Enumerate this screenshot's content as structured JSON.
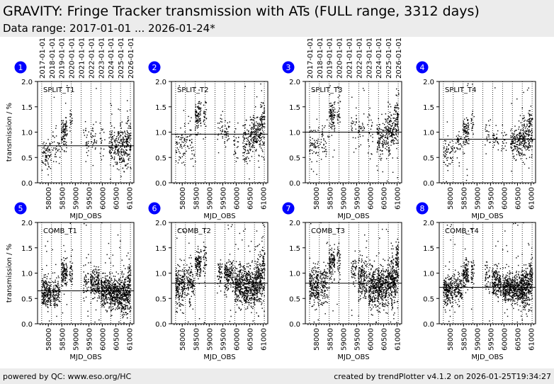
{
  "header": {
    "title": "GRAVITY: Fringe Tracker transmission with ATs (FULL range, 3312 days)",
    "subtitle": "Data range: 2017-01-01 ... 2026-01-24*"
  },
  "footer": {
    "left": "powered by QC: www.eso.org/HC",
    "right": "created by trendPlotter v4.1.2 on 2026-01-25T19:34:27"
  },
  "colors": {
    "badge": "#0000ff",
    "points": "#000000"
  },
  "year_labels": [
    "2017-01-01",
    "2018-01-01",
    "2019-01-01",
    "2020-01-01",
    "2021-01-01",
    "2022-01-01",
    "2023-01-01",
    "2024-01-01",
    "2025-01-01",
    "2026-01-01"
  ],
  "year_mjd": [
    57754,
    58119,
    58484,
    58849,
    59215,
    59580,
    59945,
    60310,
    60676,
    61041
  ],
  "chart_data": [
    {
      "type": "scatter",
      "badge": "1",
      "title": "SPLIT_T1",
      "xlabel": "MJD_OBS",
      "ylabel": "transmission / %",
      "xlim": [
        57600,
        61170
      ],
      "ylim": [
        0,
        2
      ],
      "xticks": [
        "58000",
        "58500",
        "59000",
        "59500",
        "60000",
        "60500",
        "61000"
      ],
      "yticks": [
        "0.0",
        "0.5",
        "1.0",
        "1.5",
        "2.0"
      ],
      "median": 0.73,
      "show_dates": true,
      "groups": [
        [
          57760,
          58100,
          0.55,
          0.15,
          120
        ],
        [
          58150,
          58450,
          0.7,
          0.15,
          60
        ],
        [
          58480,
          58700,
          1.0,
          0.15,
          160
        ],
        [
          58780,
          58900,
          1.15,
          0.15,
          30
        ],
        [
          59300,
          59500,
          0.9,
          0.15,
          40
        ],
        [
          59560,
          59800,
          0.85,
          0.15,
          50
        ],
        [
          59900,
          60100,
          0.85,
          0.15,
          30
        ],
        [
          60250,
          60550,
          0.7,
          0.2,
          160
        ],
        [
          60550,
          60900,
          0.7,
          0.2,
          250
        ],
        [
          60900,
          61060,
          0.8,
          0.25,
          150
        ]
      ]
    },
    {
      "type": "scatter",
      "badge": "2",
      "title": "SPLIT_T2",
      "xlabel": "MJD_OBS",
      "ylabel": "",
      "xlim": [
        57600,
        61170
      ],
      "ylim": [
        0,
        2
      ],
      "xticks": [
        "58000",
        "58500",
        "59000",
        "59500",
        "60000",
        "60500",
        "61000"
      ],
      "yticks": [
        "0.0",
        "0.5",
        "1.0",
        "1.5",
        "2.0"
      ],
      "median": 0.96,
      "show_dates": false,
      "groups": [
        [
          57760,
          58100,
          0.75,
          0.2,
          100
        ],
        [
          58150,
          58450,
          0.85,
          0.2,
          60
        ],
        [
          58480,
          58700,
          1.25,
          0.2,
          160
        ],
        [
          58780,
          58900,
          1.3,
          0.2,
          40
        ],
        [
          59300,
          59500,
          1.05,
          0.15,
          40
        ],
        [
          59560,
          59800,
          0.95,
          0.15,
          50
        ],
        [
          59900,
          60100,
          0.75,
          0.2,
          40
        ],
        [
          60250,
          60550,
          0.8,
          0.2,
          160
        ],
        [
          60550,
          60900,
          0.95,
          0.2,
          250
        ],
        [
          60900,
          61060,
          1.2,
          0.3,
          150
        ]
      ]
    },
    {
      "type": "scatter",
      "badge": "3",
      "title": "SPLIT_T3",
      "xlabel": "MJD_OBS",
      "ylabel": "",
      "xlim": [
        57600,
        61170
      ],
      "ylim": [
        0,
        2
      ],
      "xticks": [
        "58000",
        "58500",
        "59000",
        "59500",
        "60000",
        "60500",
        "61000"
      ],
      "yticks": [
        "0.0",
        "0.5",
        "1.0",
        "1.5",
        "2.0"
      ],
      "median": 1.0,
      "show_dates": true,
      "groups": [
        [
          57760,
          58100,
          0.7,
          0.2,
          100
        ],
        [
          58150,
          58450,
          0.8,
          0.2,
          60
        ],
        [
          58480,
          58700,
          1.3,
          0.15,
          160
        ],
        [
          58780,
          58900,
          1.35,
          0.2,
          40
        ],
        [
          59300,
          59500,
          1.1,
          0.15,
          40
        ],
        [
          59560,
          59800,
          1.05,
          0.15,
          50
        ],
        [
          59900,
          60100,
          0.95,
          0.2,
          40
        ],
        [
          60250,
          60550,
          0.85,
          0.2,
          160
        ],
        [
          60550,
          60900,
          1.0,
          0.2,
          250
        ],
        [
          60900,
          61060,
          1.3,
          0.3,
          150
        ]
      ]
    },
    {
      "type": "scatter",
      "badge": "4",
      "title": "SPLIT_T4",
      "xlabel": "MJD_OBS",
      "ylabel": "",
      "xlim": [
        57600,
        61170
      ],
      "ylim": [
        0,
        2
      ],
      "xticks": [
        "58000",
        "58500",
        "59000",
        "59500",
        "60000",
        "60500",
        "61000"
      ],
      "yticks": [
        "0.0",
        "0.5",
        "1.0",
        "1.5",
        "2.0"
      ],
      "median": 0.86,
      "show_dates": false,
      "groups": [
        [
          57760,
          58100,
          0.6,
          0.15,
          100
        ],
        [
          58150,
          58450,
          0.75,
          0.15,
          60
        ],
        [
          58480,
          58700,
          1.0,
          0.15,
          160
        ],
        [
          58780,
          58900,
          1.1,
          0.15,
          30
        ],
        [
          59300,
          59500,
          0.95,
          0.15,
          40
        ],
        [
          59560,
          59800,
          0.85,
          0.1,
          50
        ],
        [
          59900,
          60100,
          0.85,
          0.1,
          30
        ],
        [
          60250,
          60550,
          0.8,
          0.15,
          160
        ],
        [
          60550,
          60900,
          0.85,
          0.2,
          250
        ],
        [
          60900,
          61060,
          1.0,
          0.25,
          150
        ]
      ]
    },
    {
      "type": "scatter",
      "badge": "5",
      "title": "COMB_T1",
      "xlabel": "MJD_OBS",
      "ylabel": "transmission / %",
      "xlim": [
        57600,
        61170
      ],
      "ylim": [
        0,
        2
      ],
      "xticks": [
        "58000",
        "58500",
        "59000",
        "59500",
        "60000",
        "60500",
        "61000"
      ],
      "yticks": [
        "0.0",
        "0.5",
        "1.0",
        "1.5",
        "2.0"
      ],
      "median": 0.65,
      "show_dates": false,
      "groups": [
        [
          57760,
          58100,
          0.6,
          0.15,
          350
        ],
        [
          58150,
          58450,
          0.6,
          0.15,
          200
        ],
        [
          58480,
          58700,
          1.0,
          0.15,
          200
        ],
        [
          58780,
          58900,
          1.05,
          0.15,
          60
        ],
        [
          59300,
          59500,
          0.85,
          0.15,
          80
        ],
        [
          59560,
          59900,
          0.8,
          0.15,
          300
        ],
        [
          59950,
          60300,
          0.65,
          0.15,
          400
        ],
        [
          60300,
          60700,
          0.6,
          0.15,
          500
        ],
        [
          60700,
          60950,
          0.55,
          0.2,
          350
        ],
        [
          60950,
          61060,
          0.75,
          0.25,
          150
        ]
      ]
    },
    {
      "type": "scatter",
      "badge": "6",
      "title": "COMB_T2",
      "xlabel": "MJD_OBS",
      "ylabel": "",
      "xlim": [
        57600,
        61170
      ],
      "ylim": [
        0,
        2
      ],
      "xticks": [
        "58000",
        "58500",
        "59000",
        "59500",
        "60000",
        "60500",
        "61000"
      ],
      "yticks": [
        "0.0",
        "0.5",
        "1.0",
        "1.5",
        "2.0"
      ],
      "median": 0.8,
      "show_dates": false,
      "groups": [
        [
          57760,
          58100,
          0.75,
          0.2,
          350
        ],
        [
          58150,
          58450,
          0.8,
          0.2,
          200
        ],
        [
          58480,
          58700,
          1.2,
          0.15,
          200
        ],
        [
          58780,
          58900,
          1.3,
          0.2,
          60
        ],
        [
          59300,
          59500,
          1.0,
          0.15,
          80
        ],
        [
          59560,
          59900,
          0.95,
          0.15,
          300
        ],
        [
          59950,
          60300,
          0.75,
          0.2,
          400
        ],
        [
          60300,
          60700,
          0.7,
          0.2,
          500
        ],
        [
          60700,
          60950,
          0.85,
          0.25,
          350
        ],
        [
          60950,
          61060,
          1.1,
          0.3,
          150
        ]
      ]
    },
    {
      "type": "scatter",
      "badge": "7",
      "title": "COMB_T3",
      "xlabel": "MJD_OBS",
      "ylabel": "",
      "xlim": [
        57600,
        61170
      ],
      "ylim": [
        0,
        2
      ],
      "xticks": [
        "58000",
        "58500",
        "59000",
        "59500",
        "60000",
        "60500",
        "61000"
      ],
      "yticks": [
        "0.0",
        "0.5",
        "1.0",
        "1.5",
        "2.0"
      ],
      "median": 0.8,
      "show_dates": false,
      "groups": [
        [
          57760,
          58100,
          0.75,
          0.2,
          350
        ],
        [
          58150,
          58450,
          0.75,
          0.2,
          200
        ],
        [
          58480,
          58700,
          1.2,
          0.15,
          200
        ],
        [
          58780,
          58900,
          1.25,
          0.2,
          60
        ],
        [
          59300,
          59500,
          1.05,
          0.15,
          80
        ],
        [
          59560,
          59900,
          0.9,
          0.2,
          300
        ],
        [
          59950,
          60300,
          0.7,
          0.2,
          400
        ],
        [
          60300,
          60700,
          0.75,
          0.2,
          500
        ],
        [
          60700,
          60950,
          0.85,
          0.25,
          350
        ],
        [
          60950,
          61060,
          1.15,
          0.3,
          150
        ]
      ]
    },
    {
      "type": "scatter",
      "badge": "8",
      "title": "COMB_T4",
      "xlabel": "MJD_OBS",
      "ylabel": "",
      "xlim": [
        57600,
        61170
      ],
      "ylim": [
        0,
        2
      ],
      "xticks": [
        "58000",
        "58500",
        "59000",
        "59500",
        "60000",
        "60500",
        "61000"
      ],
      "yticks": [
        "0.0",
        "0.5",
        "1.0",
        "1.5",
        "2.0"
      ],
      "median": 0.72,
      "show_dates": false,
      "groups": [
        [
          57760,
          58100,
          0.65,
          0.15,
          350
        ],
        [
          58150,
          58450,
          0.7,
          0.15,
          200
        ],
        [
          58480,
          58700,
          0.95,
          0.15,
          200
        ],
        [
          58780,
          58900,
          1.0,
          0.15,
          60
        ],
        [
          59300,
          59500,
          0.9,
          0.15,
          80
        ],
        [
          59560,
          59900,
          0.8,
          0.15,
          300
        ],
        [
          59950,
          60300,
          0.7,
          0.15,
          400
        ],
        [
          60300,
          60700,
          0.7,
          0.15,
          500
        ],
        [
          60700,
          60950,
          0.7,
          0.2,
          350
        ],
        [
          60950,
          61060,
          0.85,
          0.25,
          150
        ]
      ]
    }
  ]
}
